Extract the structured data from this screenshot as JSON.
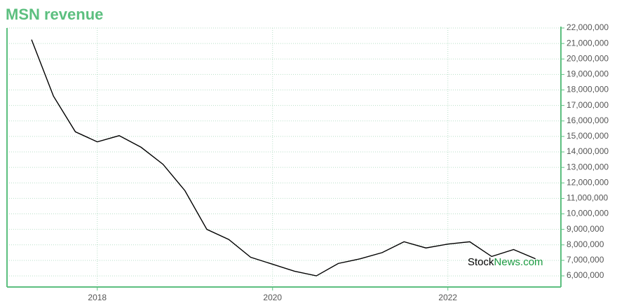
{
  "chart_data": {
    "type": "line",
    "title": "MSN revenue",
    "x": [
      2017.25,
      2017.5,
      2017.75,
      2018.0,
      2018.25,
      2018.5,
      2018.75,
      2019.0,
      2019.25,
      2019.5,
      2019.75,
      2020.0,
      2020.25,
      2020.5,
      2020.75,
      2021.0,
      2021.25,
      2021.5,
      2021.75,
      2022.0,
      2022.25,
      2022.5,
      2022.75,
      2023.0
    ],
    "series": [
      {
        "name": "Revenue",
        "color": "#000000",
        "values": [
          21250000,
          17600000,
          15300000,
          14650000,
          15050000,
          14300000,
          13200000,
          11500000,
          9000000,
          8350000,
          7200000,
          6750000,
          6300000,
          6000000,
          6800000,
          7100000,
          7500000,
          8200000,
          7800000,
          8050000,
          8200000,
          7250000,
          7700000,
          7100000
        ]
      }
    ],
    "xlim": [
      2016.97,
      2023.29
    ],
    "xticks": [
      2018,
      2020,
      2022
    ],
    "ylim": [
      5280000,
      22000000
    ],
    "yticks": [
      {
        "value": 6000000,
        "label": "6,000,000"
      },
      {
        "value": 7000000,
        "label": "7,000,000"
      },
      {
        "value": 8000000,
        "label": "8,000,000"
      },
      {
        "value": 9000000,
        "label": "9,000,000"
      },
      {
        "value": 10000000,
        "label": "10,000,000"
      },
      {
        "value": 11000000,
        "label": "11,000,000"
      },
      {
        "value": 12000000,
        "label": "12,000,000"
      },
      {
        "value": 13000000,
        "label": "13,000,000"
      },
      {
        "value": 14000000,
        "label": "14,000,000"
      },
      {
        "value": 15000000,
        "label": "15,000,000"
      },
      {
        "value": 16000000,
        "label": "16,000,000"
      },
      {
        "value": 17000000,
        "label": "17,000,000"
      },
      {
        "value": 18000000,
        "label": "18,000,000"
      },
      {
        "value": 19000000,
        "label": "19,000,000"
      },
      {
        "value": 20000000,
        "label": "20,000,000"
      },
      {
        "value": 21000000,
        "label": "21,000,000"
      },
      {
        "value": 22000000,
        "label": "22,000,000"
      }
    ],
    "grid": true,
    "axis_color": "#5cbf7f",
    "watermark": {
      "part1": "Stock",
      "part2": "News.com"
    }
  }
}
